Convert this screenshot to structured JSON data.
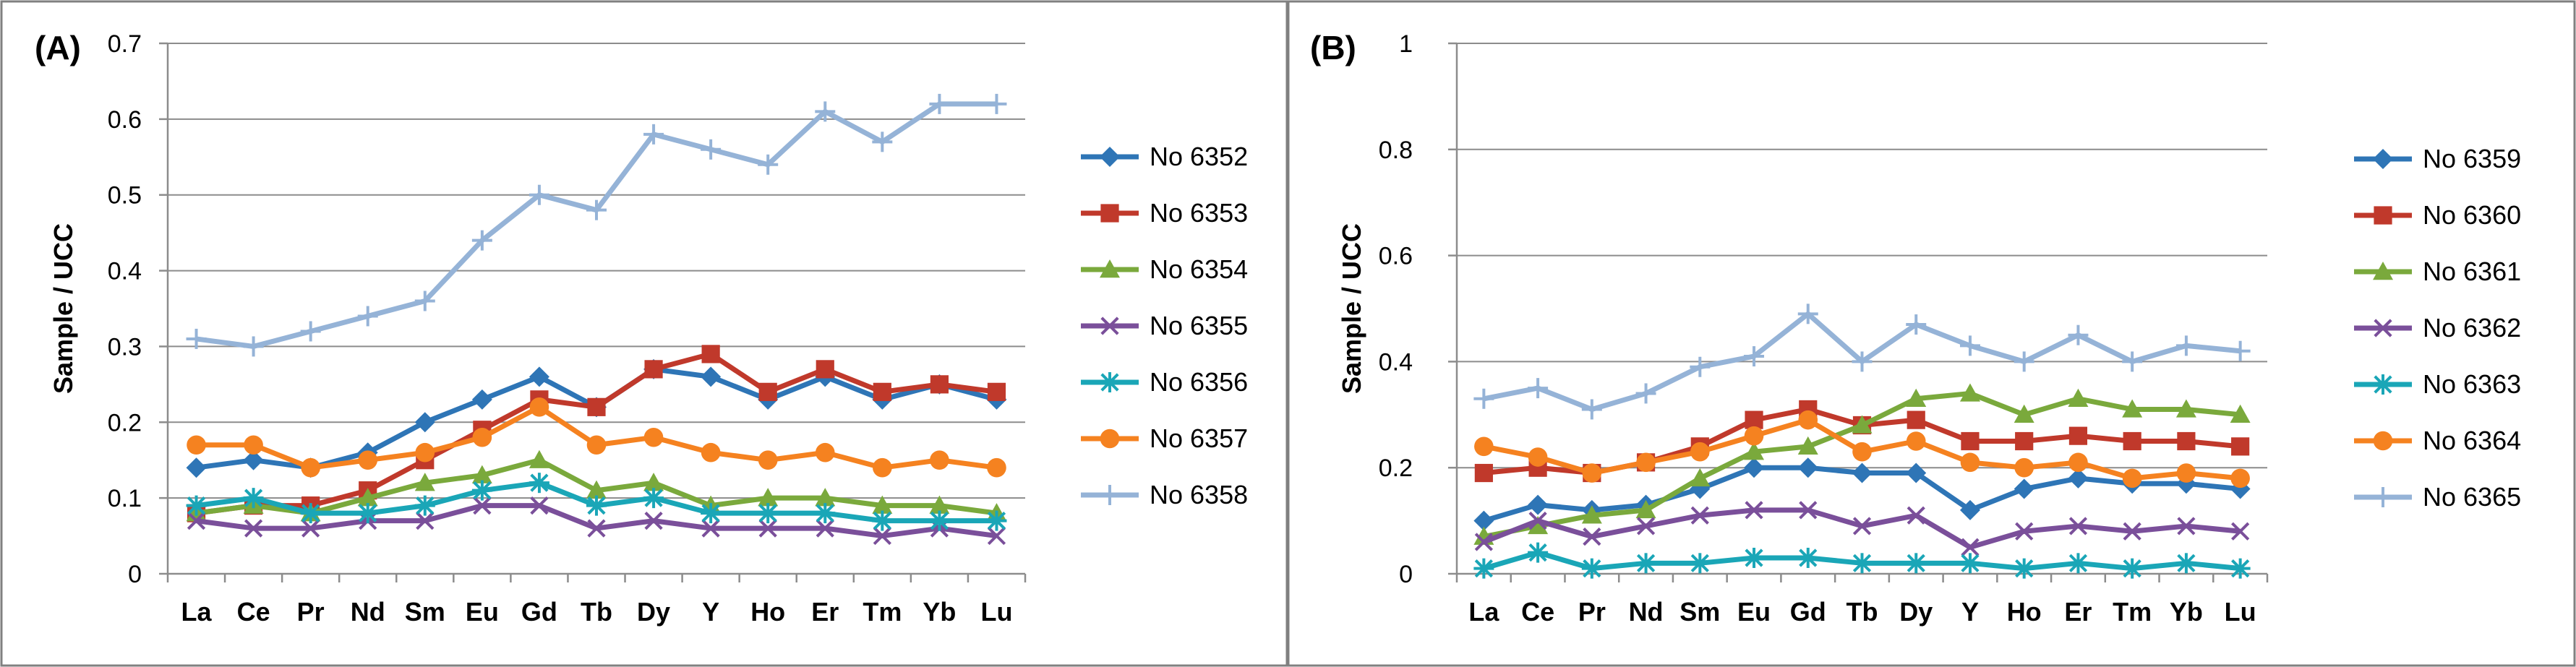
{
  "chart_data": [
    {
      "type": "line",
      "panel": "(A)",
      "ylabel": "Sample / UCC",
      "ylim": [
        0,
        0.7
      ],
      "yticks": [
        "0",
        "0.1",
        "0.2",
        "0.3",
        "0.4",
        "0.5",
        "0.6",
        "0.7"
      ],
      "ytick_values": [
        0,
        0.1,
        0.2,
        0.3,
        0.4,
        0.5,
        0.6,
        0.7
      ],
      "grid": true,
      "legend": "right",
      "categories": [
        "La",
        "Ce",
        "Pr",
        "Nd",
        "Sm",
        "Eu",
        "Gd",
        "Tb",
        "Dy",
        "Y",
        "Ho",
        "Er",
        "Tm",
        "Yb",
        "Lu"
      ],
      "series": [
        {
          "name": "No 6352",
          "color": "#2e75b6",
          "marker": "diamond",
          "values": [
            0.14,
            0.15,
            0.14,
            0.16,
            0.2,
            0.23,
            0.26,
            0.22,
            0.27,
            0.26,
            0.23,
            0.26,
            0.23,
            0.25,
            0.23
          ]
        },
        {
          "name": "No 6353",
          "color": "#c0392b",
          "marker": "square",
          "values": [
            0.08,
            0.09,
            0.09,
            0.11,
            0.15,
            0.19,
            0.23,
            0.22,
            0.27,
            0.29,
            0.24,
            0.27,
            0.24,
            0.25,
            0.24
          ]
        },
        {
          "name": "No 6354",
          "color": "#7aa93c",
          "marker": "triangle",
          "values": [
            0.08,
            0.09,
            0.08,
            0.1,
            0.12,
            0.13,
            0.15,
            0.11,
            0.12,
            0.09,
            0.1,
            0.1,
            0.09,
            0.09,
            0.08
          ]
        },
        {
          "name": "No 6355",
          "color": "#7a4f9a",
          "marker": "x",
          "values": [
            0.07,
            0.06,
            0.06,
            0.07,
            0.07,
            0.09,
            0.09,
            0.06,
            0.07,
            0.06,
            0.06,
            0.06,
            0.05,
            0.06,
            0.05
          ]
        },
        {
          "name": "No 6356",
          "color": "#1aa6b7",
          "marker": "star",
          "values": [
            0.09,
            0.1,
            0.08,
            0.08,
            0.09,
            0.11,
            0.12,
            0.09,
            0.1,
            0.08,
            0.08,
            0.08,
            0.07,
            0.07,
            0.07
          ]
        },
        {
          "name": "No 6357",
          "color": "#f58220",
          "marker": "circle",
          "values": [
            0.17,
            0.17,
            0.14,
            0.15,
            0.16,
            0.18,
            0.22,
            0.17,
            0.18,
            0.16,
            0.15,
            0.16,
            0.14,
            0.15,
            0.14
          ]
        },
        {
          "name": "No 6358",
          "color": "#95b3d7",
          "marker": "plus",
          "values": [
            0.31,
            0.3,
            0.32,
            0.34,
            0.36,
            0.44,
            0.5,
            0.48,
            0.58,
            0.56,
            0.54,
            0.61,
            0.57,
            0.62,
            0.62
          ]
        }
      ]
    },
    {
      "type": "line",
      "panel": "(B)",
      "ylabel": "Sample / UCC",
      "ylim": [
        0,
        1
      ],
      "yticks": [
        "0",
        "0.2",
        "0.4",
        "0.6",
        "0.8",
        "1"
      ],
      "ytick_values": [
        0,
        0.2,
        0.4,
        0.6,
        0.8,
        1
      ],
      "grid": true,
      "legend": "right",
      "categories": [
        "La",
        "Ce",
        "Pr",
        "Nd",
        "Sm",
        "Eu",
        "Gd",
        "Tb",
        "Dy",
        "Y",
        "Ho",
        "Er",
        "Tm",
        "Yb",
        "Lu"
      ],
      "series": [
        {
          "name": "No 6359",
          "color": "#2e75b6",
          "marker": "diamond",
          "values": [
            0.1,
            0.13,
            0.12,
            0.13,
            0.16,
            0.2,
            0.2,
            0.19,
            0.19,
            0.12,
            0.16,
            0.18,
            0.17,
            0.17,
            0.16
          ]
        },
        {
          "name": "No 6360",
          "color": "#c0392b",
          "marker": "square",
          "values": [
            0.19,
            0.2,
            0.19,
            0.21,
            0.24,
            0.29,
            0.31,
            0.28,
            0.29,
            0.25,
            0.25,
            0.26,
            0.25,
            0.25,
            0.24
          ]
        },
        {
          "name": "No 6361",
          "color": "#7aa93c",
          "marker": "triangle",
          "values": [
            0.07,
            0.09,
            0.11,
            0.12,
            0.18,
            0.23,
            0.24,
            0.28,
            0.33,
            0.34,
            0.3,
            0.33,
            0.31,
            0.31,
            0.3
          ]
        },
        {
          "name": "No 6362",
          "color": "#7a4f9a",
          "marker": "x",
          "values": [
            0.06,
            0.1,
            0.07,
            0.09,
            0.11,
            0.12,
            0.12,
            0.09,
            0.11,
            0.05,
            0.08,
            0.09,
            0.08,
            0.09,
            0.08
          ]
        },
        {
          "name": "No 6363",
          "color": "#1aa6b7",
          "marker": "star",
          "values": [
            0.01,
            0.04,
            0.01,
            0.02,
            0.02,
            0.03,
            0.03,
            0.02,
            0.02,
            0.02,
            0.01,
            0.02,
            0.01,
            0.02,
            0.01
          ]
        },
        {
          "name": "No 6364",
          "color": "#f58220",
          "marker": "circle",
          "values": [
            0.24,
            0.22,
            0.19,
            0.21,
            0.23,
            0.26,
            0.29,
            0.23,
            0.25,
            0.21,
            0.2,
            0.21,
            0.18,
            0.19,
            0.18
          ]
        },
        {
          "name": "No 6365",
          "color": "#95b3d7",
          "marker": "plus",
          "values": [
            0.33,
            0.35,
            0.31,
            0.34,
            0.39,
            0.41,
            0.49,
            0.4,
            0.47,
            0.43,
            0.4,
            0.45,
            0.4,
            0.43,
            0.42
          ]
        }
      ]
    }
  ]
}
